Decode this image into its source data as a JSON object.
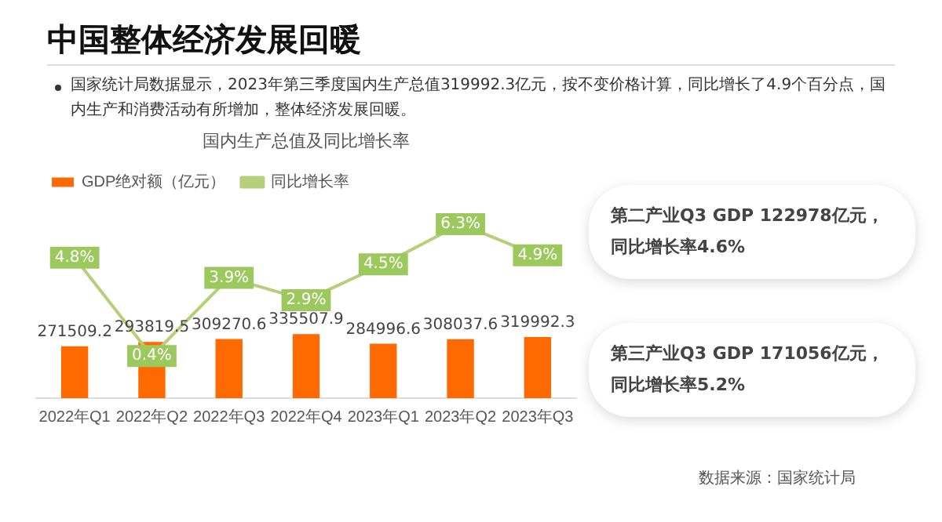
{
  "chart_data": [
    {
      "type": "bar",
      "title": "国内生产总值及同比增长率",
      "annotations": [
        "中国整体经济发展回暖",
        "国家统计局数据显示，2023年第三季度国内生产总值319992.3亿元，按不变价格计算，同比增长了4.9个百分点，国内生产和消费活动有所增加，整体经济发展回暖。",
        "数据来源：国家统计局"
      ],
      "categories": [
        "2022年Q1",
        "2022年Q2",
        "2022年Q3",
        "2022年Q4",
        "2023年Q1",
        "2023年Q2",
        "2023年Q3"
      ],
      "series": [
        {
          "name": "GDP绝对额（亿元）",
          "type": "bar",
          "color": "#ff6a00",
          "values": [
            271509.2,
            293819.5,
            309270.6,
            335507.9,
            284996.6,
            308037.6,
            319992.3
          ]
        },
        {
          "name": "同比增长率",
          "type": "line",
          "axis": "y2",
          "color": "#b5cf7a",
          "values": [
            4.8,
            0.4,
            3.9,
            2.9,
            4.5,
            6.3,
            4.9
          ],
          "value_labels": [
            "4.8%",
            "0.4%",
            "3.9%",
            "2.9%",
            "4.5%",
            "6.3%",
            "4.9%"
          ]
        }
      ],
      "data_labels": true,
      "tick_labels": "x",
      "grid": false,
      "legend": "top left"
    },
    {
      "type": "other",
      "annotations": [
        "第二产业Q3 GDP 122978亿元，",
        "同比增长率4.6%",
        "第三产业Q3 GDP 171056亿元，",
        "同比增长率5.2%"
      ]
    }
  ]
}
